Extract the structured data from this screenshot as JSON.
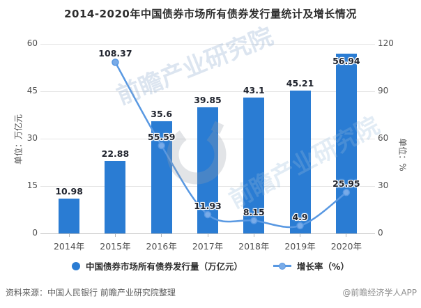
{
  "title": "2014-2020年中国债券市场所有债券发行量统计及增长情况",
  "chart_data": {
    "type": "bar+line",
    "categories": [
      "2014年",
      "2015年",
      "2016年",
      "2017年",
      "2018年",
      "2019年",
      "2020年"
    ],
    "series": [
      {
        "name": "中国债券市场所有债券发行量（万亿元）",
        "type": "bar",
        "axis": "left",
        "values": [
          10.98,
          22.88,
          35.6,
          39.85,
          43.1,
          45.21,
          56.94
        ]
      },
      {
        "name": "增长率（%）",
        "type": "line",
        "axis": "right",
        "values": [
          null,
          108.37,
          55.59,
          11.93,
          8.15,
          4.9,
          25.95
        ]
      }
    ],
    "left_axis": {
      "title": "单位：万亿元",
      "min": 0,
      "max": 60,
      "ticks": [
        0,
        15,
        30,
        45,
        60
      ]
    },
    "right_axis": {
      "title": "单位：%",
      "min": 0,
      "max": 120,
      "ticks": [
        0,
        30,
        60,
        90,
        120
      ]
    },
    "grid": true,
    "legend_position": "bottom",
    "data_labels": true
  },
  "footer": {
    "source": "资料来源：中国人民银行 前瞻产业研究院整理",
    "credit": "@前瞻经济学人APP"
  },
  "watermark": {
    "text": "前瞻产业研究院"
  },
  "colors": {
    "bar": "#2a7cd3",
    "line": "#5898e2",
    "line_point_fill": "#79abe8",
    "grid": "#e4e4e4",
    "axis_line": "#c0c0c0",
    "label": "#20242e",
    "axis_text": "#4f4f4f",
    "title_text": "#2d2d2d"
  }
}
